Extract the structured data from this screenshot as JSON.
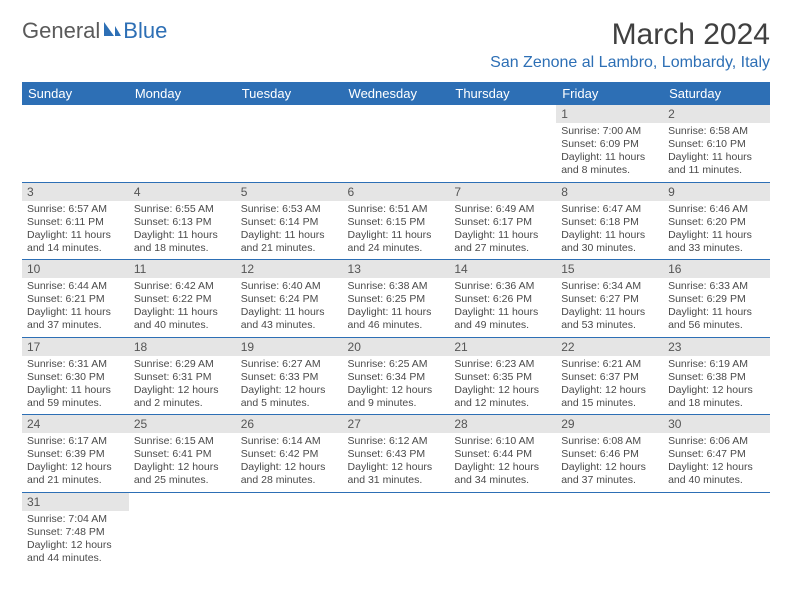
{
  "logo": {
    "part1": "General",
    "part2": "Blue"
  },
  "title": "March 2024",
  "location": "San Zenone al Lambro, Lombardy, Italy",
  "colors": {
    "accent": "#2d6fb5",
    "header_text": "#ffffff",
    "daynum_bg": "#e5e5e5",
    "body_text": "#4a4a4a",
    "title_text": "#404040"
  },
  "weekdays": [
    "Sunday",
    "Monday",
    "Tuesday",
    "Wednesday",
    "Thursday",
    "Friday",
    "Saturday"
  ],
  "weeks": [
    [
      {
        "empty": true
      },
      {
        "empty": true
      },
      {
        "empty": true
      },
      {
        "empty": true
      },
      {
        "empty": true
      },
      {
        "day": "1",
        "sunrise": "Sunrise: 7:00 AM",
        "sunset": "Sunset: 6:09 PM",
        "daylight": "Daylight: 11 hours and 8 minutes."
      },
      {
        "day": "2",
        "sunrise": "Sunrise: 6:58 AM",
        "sunset": "Sunset: 6:10 PM",
        "daylight": "Daylight: 11 hours and 11 minutes."
      }
    ],
    [
      {
        "day": "3",
        "sunrise": "Sunrise: 6:57 AM",
        "sunset": "Sunset: 6:11 PM",
        "daylight": "Daylight: 11 hours and 14 minutes."
      },
      {
        "day": "4",
        "sunrise": "Sunrise: 6:55 AM",
        "sunset": "Sunset: 6:13 PM",
        "daylight": "Daylight: 11 hours and 18 minutes."
      },
      {
        "day": "5",
        "sunrise": "Sunrise: 6:53 AM",
        "sunset": "Sunset: 6:14 PM",
        "daylight": "Daylight: 11 hours and 21 minutes."
      },
      {
        "day": "6",
        "sunrise": "Sunrise: 6:51 AM",
        "sunset": "Sunset: 6:15 PM",
        "daylight": "Daylight: 11 hours and 24 minutes."
      },
      {
        "day": "7",
        "sunrise": "Sunrise: 6:49 AM",
        "sunset": "Sunset: 6:17 PM",
        "daylight": "Daylight: 11 hours and 27 minutes."
      },
      {
        "day": "8",
        "sunrise": "Sunrise: 6:47 AM",
        "sunset": "Sunset: 6:18 PM",
        "daylight": "Daylight: 11 hours and 30 minutes."
      },
      {
        "day": "9",
        "sunrise": "Sunrise: 6:46 AM",
        "sunset": "Sunset: 6:20 PM",
        "daylight": "Daylight: 11 hours and 33 minutes."
      }
    ],
    [
      {
        "day": "10",
        "sunrise": "Sunrise: 6:44 AM",
        "sunset": "Sunset: 6:21 PM",
        "daylight": "Daylight: 11 hours and 37 minutes."
      },
      {
        "day": "11",
        "sunrise": "Sunrise: 6:42 AM",
        "sunset": "Sunset: 6:22 PM",
        "daylight": "Daylight: 11 hours and 40 minutes."
      },
      {
        "day": "12",
        "sunrise": "Sunrise: 6:40 AM",
        "sunset": "Sunset: 6:24 PM",
        "daylight": "Daylight: 11 hours and 43 minutes."
      },
      {
        "day": "13",
        "sunrise": "Sunrise: 6:38 AM",
        "sunset": "Sunset: 6:25 PM",
        "daylight": "Daylight: 11 hours and 46 minutes."
      },
      {
        "day": "14",
        "sunrise": "Sunrise: 6:36 AM",
        "sunset": "Sunset: 6:26 PM",
        "daylight": "Daylight: 11 hours and 49 minutes."
      },
      {
        "day": "15",
        "sunrise": "Sunrise: 6:34 AM",
        "sunset": "Sunset: 6:27 PM",
        "daylight": "Daylight: 11 hours and 53 minutes."
      },
      {
        "day": "16",
        "sunrise": "Sunrise: 6:33 AM",
        "sunset": "Sunset: 6:29 PM",
        "daylight": "Daylight: 11 hours and 56 minutes."
      }
    ],
    [
      {
        "day": "17",
        "sunrise": "Sunrise: 6:31 AM",
        "sunset": "Sunset: 6:30 PM",
        "daylight": "Daylight: 11 hours and 59 minutes."
      },
      {
        "day": "18",
        "sunrise": "Sunrise: 6:29 AM",
        "sunset": "Sunset: 6:31 PM",
        "daylight": "Daylight: 12 hours and 2 minutes."
      },
      {
        "day": "19",
        "sunrise": "Sunrise: 6:27 AM",
        "sunset": "Sunset: 6:33 PM",
        "daylight": "Daylight: 12 hours and 5 minutes."
      },
      {
        "day": "20",
        "sunrise": "Sunrise: 6:25 AM",
        "sunset": "Sunset: 6:34 PM",
        "daylight": "Daylight: 12 hours and 9 minutes."
      },
      {
        "day": "21",
        "sunrise": "Sunrise: 6:23 AM",
        "sunset": "Sunset: 6:35 PM",
        "daylight": "Daylight: 12 hours and 12 minutes."
      },
      {
        "day": "22",
        "sunrise": "Sunrise: 6:21 AM",
        "sunset": "Sunset: 6:37 PM",
        "daylight": "Daylight: 12 hours and 15 minutes."
      },
      {
        "day": "23",
        "sunrise": "Sunrise: 6:19 AM",
        "sunset": "Sunset: 6:38 PM",
        "daylight": "Daylight: 12 hours and 18 minutes."
      }
    ],
    [
      {
        "day": "24",
        "sunrise": "Sunrise: 6:17 AM",
        "sunset": "Sunset: 6:39 PM",
        "daylight": "Daylight: 12 hours and 21 minutes."
      },
      {
        "day": "25",
        "sunrise": "Sunrise: 6:15 AM",
        "sunset": "Sunset: 6:41 PM",
        "daylight": "Daylight: 12 hours and 25 minutes."
      },
      {
        "day": "26",
        "sunrise": "Sunrise: 6:14 AM",
        "sunset": "Sunset: 6:42 PM",
        "daylight": "Daylight: 12 hours and 28 minutes."
      },
      {
        "day": "27",
        "sunrise": "Sunrise: 6:12 AM",
        "sunset": "Sunset: 6:43 PM",
        "daylight": "Daylight: 12 hours and 31 minutes."
      },
      {
        "day": "28",
        "sunrise": "Sunrise: 6:10 AM",
        "sunset": "Sunset: 6:44 PM",
        "daylight": "Daylight: 12 hours and 34 minutes."
      },
      {
        "day": "29",
        "sunrise": "Sunrise: 6:08 AM",
        "sunset": "Sunset: 6:46 PM",
        "daylight": "Daylight: 12 hours and 37 minutes."
      },
      {
        "day": "30",
        "sunrise": "Sunrise: 6:06 AM",
        "sunset": "Sunset: 6:47 PM",
        "daylight": "Daylight: 12 hours and 40 minutes."
      }
    ],
    [
      {
        "day": "31",
        "sunrise": "Sunrise: 7:04 AM",
        "sunset": "Sunset: 7:48 PM",
        "daylight": "Daylight: 12 hours and 44 minutes."
      },
      {
        "empty": true
      },
      {
        "empty": true
      },
      {
        "empty": true
      },
      {
        "empty": true
      },
      {
        "empty": true
      },
      {
        "empty": true
      }
    ]
  ]
}
